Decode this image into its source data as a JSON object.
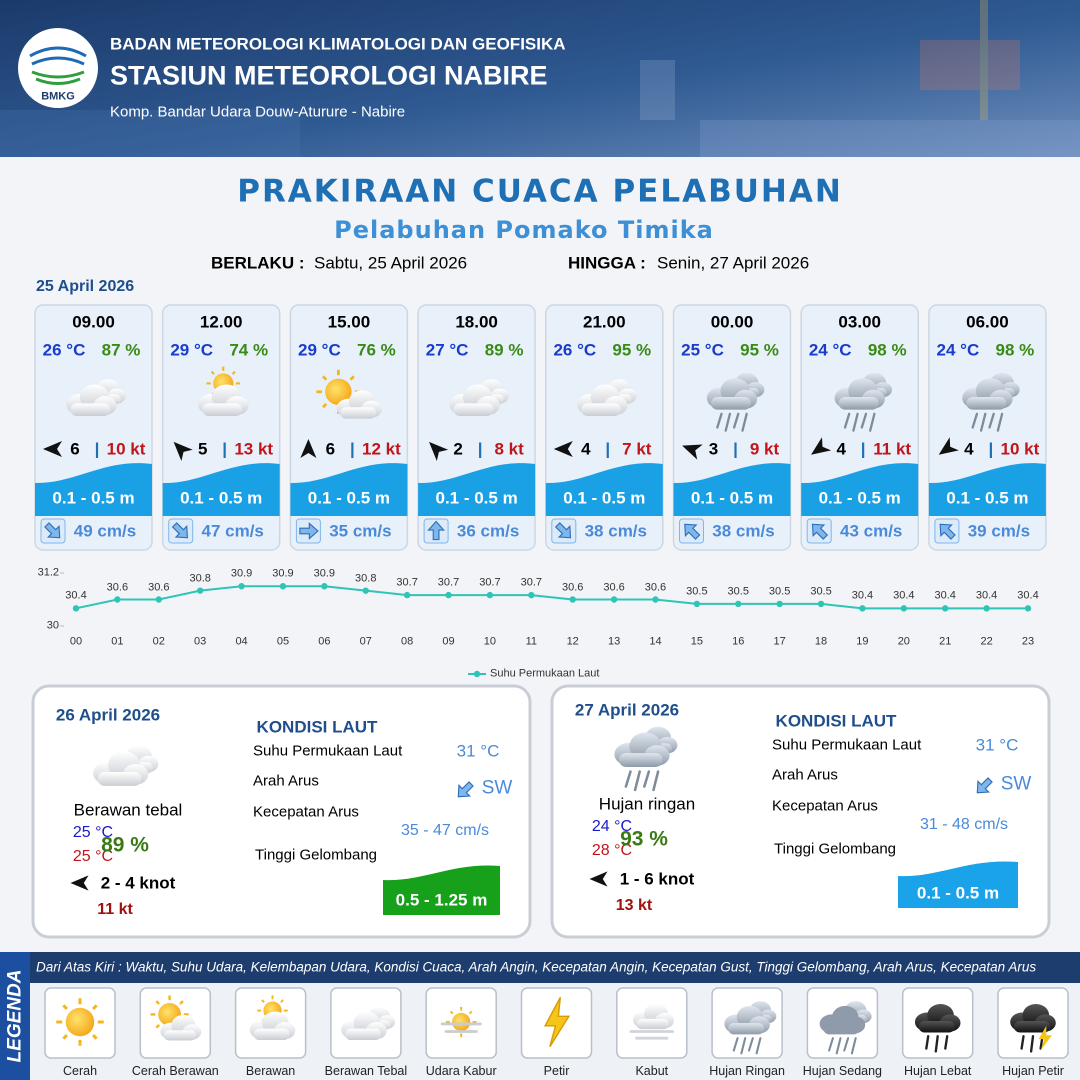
{
  "header": {
    "logo_text": "BMKG",
    "organization": "BADAN METEOROLOGI KLIMATOLOGI DAN GEOFISIKA",
    "station": "STASIUN METEOROLOGI NABIRE",
    "address": "Komp. Bandar Udara Douw-Aturure - Nabire"
  },
  "title": "PRAKIRAAN CUACA PELABUHAN",
  "subtitle": "Pelabuhan Pomako Timika",
  "validity": {
    "from_label": "BERLAKU :",
    "from": "Sabtu, 25 April 2026",
    "to_label": "HINGGA :",
    "to": "Senin, 27 April 2026"
  },
  "day1": {
    "date": "25 April 2026",
    "cards": [
      {
        "time": "09.00",
        "temperature": "26 °C",
        "humidity": "87 %",
        "wind_speed": "6",
        "separator": "|",
        "gust": "10 kt",
        "wave": "0.1 - 0.5 m",
        "current": "49 cm/s"
      },
      {
        "time": "12.00",
        "temperature": "29 °C",
        "humidity": "74 %",
        "wind_speed": "5",
        "separator": "|",
        "gust": "13 kt",
        "wave": "0.1 - 0.5 m",
        "current": "47 cm/s"
      },
      {
        "time": "15.00",
        "temperature": "29 °C",
        "humidity": "76 %",
        "wind_speed": "6",
        "separator": "|",
        "gust": "12 kt",
        "wave": "0.1 - 0.5 m",
        "current": "35 cm/s"
      },
      {
        "time": "18.00",
        "temperature": "27 °C",
        "humidity": "89 %",
        "wind_speed": "2",
        "separator": "|",
        "gust": "8 kt",
        "wave": "0.1 - 0.5 m",
        "current": "36 cm/s"
      },
      {
        "time": "21.00",
        "temperature": "26 °C",
        "humidity": "95 %",
        "wind_speed": "4",
        "separator": "|",
        "gust": "7 kt",
        "wave": "0.1 - 0.5 m",
        "current": "38 cm/s"
      },
      {
        "time": "00.00",
        "temperature": "25 °C",
        "humidity": "95 %",
        "wind_speed": "3",
        "separator": "|",
        "gust": "9 kt",
        "wave": "0.1 - 0.5 m",
        "current": "38 cm/s"
      },
      {
        "time": "03.00",
        "temperature": "24 °C",
        "humidity": "98 %",
        "wind_speed": "4",
        "separator": "|",
        "gust": "11 kt",
        "wave": "0.1 - 0.5 m",
        "current": "43 cm/s"
      },
      {
        "time": "06.00",
        "temperature": "24 °C",
        "humidity": "98 %",
        "wind_speed": "4",
        "separator": "|",
        "gust": "10 kt",
        "wave": "0.1 - 0.5 m",
        "current": "39 cm/s"
      }
    ]
  },
  "chart_data": {
    "type": "line",
    "categories": [
      "00",
      "01",
      "02",
      "03",
      "04",
      "05",
      "06",
      "07",
      "08",
      "09",
      "10",
      "11",
      "12",
      "13",
      "14",
      "15",
      "16",
      "17",
      "18",
      "19",
      "20",
      "21",
      "22",
      "23"
    ],
    "series": [
      {
        "name": "Suhu Permukaan Laut",
        "color": "#2ec4b6",
        "values": [
          30.4,
          30.6,
          30.6,
          30.8,
          30.9,
          30.9,
          30.9,
          30.8,
          30.7,
          30.7,
          30.7,
          30.7,
          30.6,
          30.6,
          30.6,
          30.5,
          30.5,
          30.5,
          30.5,
          30.4,
          30.4,
          30.4,
          30.4,
          30.4
        ]
      }
    ],
    "ylim": [
      30,
      31.2
    ],
    "yticks": [
      30,
      31.2
    ],
    "legend": "bottom"
  },
  "day2": {
    "date": "26 April 2026",
    "weather": "Berawan tebal",
    "temperature_min": "25 °C",
    "temperature_max": "25 °C",
    "humidity": "89 %",
    "wind": "2  - 4 knot",
    "gust": "11 kt",
    "sea_title": "KONDISI LAUT",
    "sst_label": "Suhu Permukaan Laut",
    "current_dir_label": "Arah Arus",
    "current_speed_label": "Kecepatan Arus",
    "wave_label": "Tinggi Gelombang",
    "sst": "31 °C",
    "current_dir": "SW",
    "current_speed": "35 - 47 cm/s",
    "wave": "0.5 - 1.25 m"
  },
  "day3": {
    "date": "27 April 2026",
    "weather": "Hujan ringan",
    "temperature_min": "24 °C",
    "temperature_max": "28 °C",
    "humidity": "93 %",
    "wind": "1 - 6 knot",
    "gust": "13 kt",
    "sea_title": "KONDISI LAUT",
    "sst_label": "Suhu Permukaan Laut",
    "current_dir_label": "Arah Arus",
    "current_speed_label": "Kecepatan Arus",
    "wave_label": "Tinggi Gelombang",
    "sst": "31 °C",
    "current_dir": "SW",
    "current_speed": "31 - 48 cm/s",
    "wave": "0.1 - 0.5 m"
  },
  "legend": {
    "title": "LEGENDA",
    "description": "Dari Atas Kiri : Waktu, Suhu Udara, Kelembapan Udara, Kondisi Cuaca, Arah Angin, Kecepatan Angin, Kecepatan Gust, Tinggi Gelombang, Arah Arus, Kecepatan Arus",
    "items": [
      "Cerah",
      "Cerah Berawan",
      "Berawan",
      "Berawan Tebal",
      "Udara Kabur",
      "Petir",
      "Kabut",
      "Hujan Ringan",
      "Hujan Sedang",
      "Hujan Lebat",
      "Hujan Petir"
    ]
  }
}
